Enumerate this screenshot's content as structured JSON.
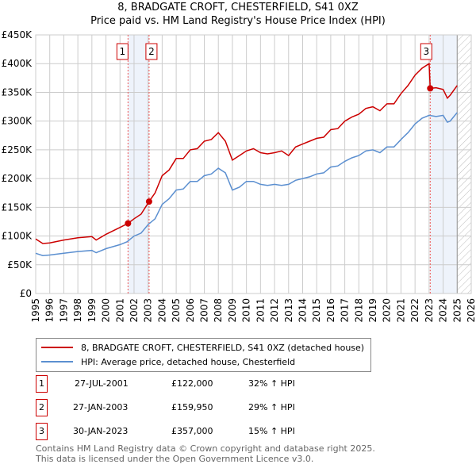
{
  "title_line1": "8, BRADGATE CROFT, CHESTERFIELD, S41 0XZ",
  "title_line2": "Price paid vs. HM Land Registry's House Price Index (HPI)",
  "colors": {
    "property": "#cc0000",
    "hpi": "#5b8fd0",
    "shade": "#eef3fb"
  },
  "chart_data": {
    "type": "line",
    "xlim": [
      1995,
      2026
    ],
    "ylim": [
      0,
      450000
    ],
    "yticks": [
      {
        "v": 0,
        "label": "£0"
      },
      {
        "v": 50000,
        "label": "£50K"
      },
      {
        "v": 100000,
        "label": "£100K"
      },
      {
        "v": 150000,
        "label": "£150K"
      },
      {
        "v": 200000,
        "label": "£200K"
      },
      {
        "v": 250000,
        "label": "£250K"
      },
      {
        "v": 300000,
        "label": "£300K"
      },
      {
        "v": 350000,
        "label": "£350K"
      },
      {
        "v": 400000,
        "label": "£400K"
      },
      {
        "v": 450000,
        "label": "£450K"
      }
    ],
    "xticks": [
      "1995",
      "1996",
      "1997",
      "1998",
      "1999",
      "2000",
      "2001",
      "2002",
      "2003",
      "2004",
      "2005",
      "2006",
      "2007",
      "2008",
      "2009",
      "2010",
      "2011",
      "2012",
      "2013",
      "2014",
      "2015",
      "2016",
      "2017",
      "2018",
      "2019",
      "2020",
      "2021",
      "2022",
      "2023",
      "2024",
      "2025",
      "2026"
    ],
    "series": [
      {
        "name": "8, BRADGATE CROFT, CHESTERFIELD, S41 0XZ (detached house)",
        "color": "#cc0000",
        "x": [
          1995,
          1995.5,
          1996,
          1997,
          1998,
          1999,
          1999.3,
          2000,
          2001,
          2001.57,
          2002,
          2002.5,
          2003.07,
          2003.5,
          2004,
          2004.5,
          2005,
          2005.5,
          2006,
          2006.5,
          2007,
          2007.5,
          2008,
          2008.5,
          2009,
          2009.5,
          2010,
          2010.5,
          2011,
          2011.5,
          2012,
          2012.5,
          2013,
          2013.5,
          2014,
          2014.5,
          2015,
          2015.5,
          2016,
          2016.5,
          2017,
          2017.5,
          2018,
          2018.5,
          2019,
          2019.5,
          2020,
          2020.5,
          2021,
          2021.5,
          2022,
          2022.5,
          2023,
          2023.08,
          2023.5,
          2024,
          2024.3,
          2024.5,
          2025
        ],
        "y": [
          95,
          87,
          88,
          93,
          97,
          99,
          93,
          103,
          115,
          122,
          130,
          138,
          160,
          175,
          205,
          215,
          235,
          235,
          250,
          252,
          265,
          268,
          280,
          265,
          232,
          240,
          248,
          252,
          245,
          243,
          245,
          248,
          240,
          255,
          260,
          265,
          270,
          272,
          285,
          287,
          300,
          307,
          312,
          322,
          325,
          318,
          330,
          330,
          348,
          362,
          380,
          392,
          400,
          357,
          358,
          355,
          340,
          345,
          362
        ]
      },
      {
        "name": "HPI: Average price, detached house, Chesterfield",
        "color": "#5b8fd0",
        "x": [
          1995,
          1995.5,
          1996,
          1997,
          1998,
          1999,
          1999.3,
          2000,
          2001,
          2001.5,
          2002,
          2002.5,
          2003,
          2003.5,
          2004,
          2004.5,
          2005,
          2005.5,
          2006,
          2006.5,
          2007,
          2007.5,
          2008,
          2008.5,
          2009,
          2009.5,
          2010,
          2010.5,
          2011,
          2011.5,
          2012,
          2012.5,
          2013,
          2013.5,
          2014,
          2014.5,
          2015,
          2015.5,
          2016,
          2016.5,
          2017,
          2017.5,
          2018,
          2018.5,
          2019,
          2019.5,
          2020,
          2020.5,
          2021,
          2021.5,
          2022,
          2022.5,
          2023,
          2023.5,
          2024,
          2024.3,
          2024.5,
          2025
        ],
        "y": [
          70,
          66,
          67,
          70,
          73,
          75,
          71,
          78,
          85,
          90,
          100,
          105,
          120,
          130,
          155,
          165,
          180,
          182,
          195,
          195,
          205,
          208,
          218,
          210,
          180,
          185,
          195,
          195,
          190,
          188,
          190,
          188,
          190,
          197,
          200,
          203,
          208,
          210,
          220,
          222,
          230,
          236,
          240,
          248,
          250,
          245,
          255,
          255,
          268,
          280,
          295,
          305,
          310,
          308,
          310,
          298,
          300,
          315
        ]
      }
    ],
    "y_unit": "thousands GBP",
    "sales": [
      {
        "label": "1",
        "x": 2001.57,
        "price": 122000
      },
      {
        "label": "2",
        "x": 2003.07,
        "price": 159950
      },
      {
        "label": "3",
        "x": 2023.08,
        "price": 357000
      }
    ],
    "data_end": 2025
  },
  "legend": {
    "property": "8, BRADGATE CROFT, CHESTERFIELD, S41 0XZ (detached house)",
    "hpi": "HPI: Average price, detached house, Chesterfield"
  },
  "transactions": [
    {
      "num": "1",
      "date": "27-JUL-2001",
      "price": "£122,000",
      "hpi": "32% ↑ HPI"
    },
    {
      "num": "2",
      "date": "27-JAN-2003",
      "price": "£159,950",
      "hpi": "29% ↑ HPI"
    },
    {
      "num": "3",
      "date": "30-JAN-2023",
      "price": "£357,000",
      "hpi": "15% ↑ HPI"
    }
  ],
  "footer": {
    "line1": "Contains HM Land Registry data © Crown copyright and database right 2025.",
    "line2": "This data is licensed under the Open Government Licence v3.0."
  }
}
